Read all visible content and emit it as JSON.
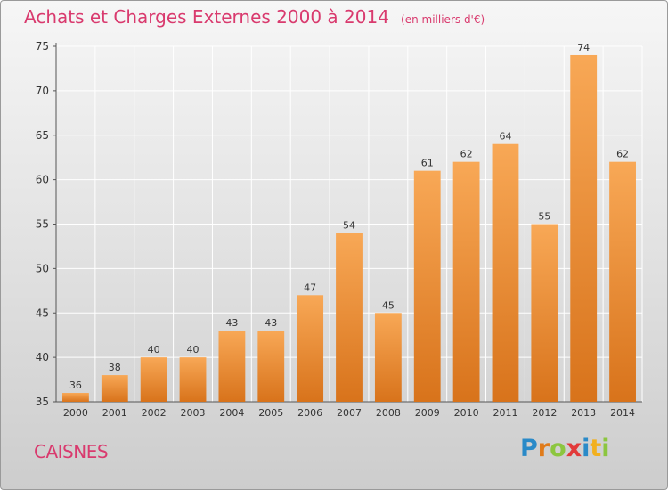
{
  "chart_data": {
    "type": "bar",
    "title": "Achats et Charges Externes 2000 à 2014",
    "subtitle": "(en milliers d'€)",
    "categories": [
      "2000",
      "2001",
      "2002",
      "2003",
      "2004",
      "2005",
      "2006",
      "2007",
      "2008",
      "2009",
      "2010",
      "2011",
      "2012",
      "2013",
      "2014"
    ],
    "values": [
      36,
      38,
      40,
      40,
      43,
      43,
      47,
      54,
      45,
      61,
      62,
      64,
      55,
      74,
      62
    ],
    "ylim": [
      35,
      75
    ],
    "yticks": [
      35,
      40,
      45,
      50,
      55,
      60,
      65,
      70,
      75
    ],
    "grid": true,
    "bar_color": "#f0902e",
    "label_color": "#333333"
  },
  "place_name": "CAISNES",
  "brand": {
    "letters": [
      "P",
      "r",
      "o",
      "x",
      "i",
      "t",
      "i"
    ],
    "colors": [
      "#2a8ac8",
      "#e07b1a",
      "#8cc63f",
      "#e23a3a",
      "#2a8ac8",
      "#f2b01e",
      "#8cc63f"
    ]
  }
}
